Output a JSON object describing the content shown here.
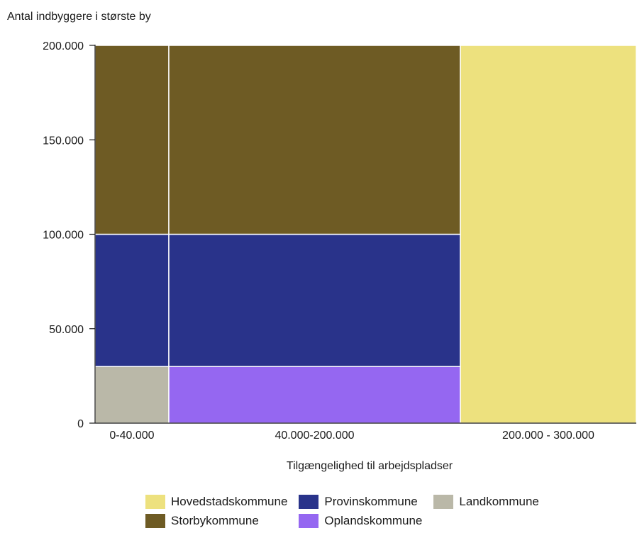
{
  "chart_data": {
    "type": "mosaic",
    "ylabel": "Antal indbyggere i største by",
    "xlabel": "Tilgængelighed til arbejdspladser",
    "ylim": [
      0,
      200000
    ],
    "yticks": [
      {
        "value": 0,
        "label": "0"
      },
      {
        "value": 50000,
        "label": "50.000"
      },
      {
        "value": 100000,
        "label": "100.000"
      },
      {
        "value": 150000,
        "label": "150.000"
      },
      {
        "value": 200000,
        "label": "200.000"
      }
    ],
    "x_scale_note": "piecewise: each category band drawn with its own width",
    "categories": [
      {
        "label": "0-40.000"
      },
      {
        "label": "40.000-200.000"
      },
      {
        "label": "200.000 - 300.000"
      }
    ],
    "cells": [
      {
        "category": "0-40.000",
        "series": "Landkommune",
        "y0": 0,
        "y1": 30000
      },
      {
        "category": "0-40.000",
        "series": "Provinskommune",
        "y0": 30000,
        "y1": 100000
      },
      {
        "category": "0-40.000",
        "series": "Storbykommune",
        "y0": 100000,
        "y1": 200000
      },
      {
        "category": "40.000-200.000",
        "series": "Oplandskommune",
        "y0": 0,
        "y1": 30000
      },
      {
        "category": "40.000-200.000",
        "series": "Provinskommune",
        "y0": 30000,
        "y1": 100000
      },
      {
        "category": "40.000-200.000",
        "series": "Storbykommune",
        "y0": 100000,
        "y1": 200000
      },
      {
        "category": "200.000 - 300.000",
        "series": "Hovedstadskommune",
        "y0": 0,
        "y1": 200000
      }
    ],
    "series": [
      {
        "name": "Hovedstadskommune",
        "color": "#EDE17E"
      },
      {
        "name": "Provinskommune",
        "color": "#29338A"
      },
      {
        "name": "Landkommune",
        "color": "#BAB8A8"
      },
      {
        "name": "Storbykommune",
        "color": "#6E5B24"
      },
      {
        "name": "Oplandskommune",
        "color": "#9567F1"
      }
    ],
    "legend_position": "bottom",
    "grid": false
  }
}
